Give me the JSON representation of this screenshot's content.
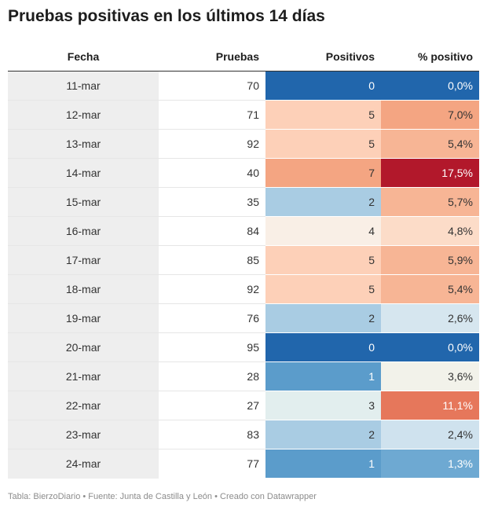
{
  "chart_data": {
    "type": "table",
    "title": "Pruebas positivas en los últimos 14 días",
    "columns": [
      "Fecha",
      "Pruebas",
      "Positivos",
      "% positivo"
    ],
    "rows": [
      {
        "fecha": "11-mar",
        "pruebas": "70",
        "positivos": "0",
        "pct": "0,0%",
        "pos_color": "#2166ac",
        "pct_color": "#2166ac"
      },
      {
        "fecha": "12-mar",
        "pruebas": "71",
        "positivos": "5",
        "pct": "7,0%",
        "pos_color": "#fdd0b8",
        "pct_color": "#f4a582"
      },
      {
        "fecha": "13-mar",
        "pruebas": "92",
        "positivos": "5",
        "pct": "5,4%",
        "pos_color": "#fdd0b8",
        "pct_color": "#f7b595"
      },
      {
        "fecha": "14-mar",
        "pruebas": "40",
        "positivos": "7",
        "pct": "17,5%",
        "pos_color": "#f4a582",
        "pct_color": "#b2182b"
      },
      {
        "fecha": "15-mar",
        "pruebas": "35",
        "positivos": "2",
        "pct": "5,7%",
        "pos_color": "#a9cce3",
        "pct_color": "#f7b595"
      },
      {
        "fecha": "16-mar",
        "pruebas": "84",
        "positivos": "4",
        "pct": "4,8%",
        "pos_color": "#f9efe6",
        "pct_color": "#fcdcc8"
      },
      {
        "fecha": "17-mar",
        "pruebas": "85",
        "positivos": "5",
        "pct": "5,9%",
        "pos_color": "#fdd0b8",
        "pct_color": "#f7b595"
      },
      {
        "fecha": "18-mar",
        "pruebas": "92",
        "positivos": "5",
        "pct": "5,4%",
        "pos_color": "#fdd0b8",
        "pct_color": "#f7b595"
      },
      {
        "fecha": "19-mar",
        "pruebas": "76",
        "positivos": "2",
        "pct": "2,6%",
        "pos_color": "#a9cce3",
        "pct_color": "#d6e6ef"
      },
      {
        "fecha": "20-mar",
        "pruebas": "95",
        "positivos": "0",
        "pct": "0,0%",
        "pos_color": "#2166ac",
        "pct_color": "#2166ac"
      },
      {
        "fecha": "21-mar",
        "pruebas": "28",
        "positivos": "1",
        "pct": "3,6%",
        "pos_color": "#5b9ccb",
        "pct_color": "#f2f2ea"
      },
      {
        "fecha": "22-mar",
        "pruebas": "27",
        "positivos": "3",
        "pct": "11,1%",
        "pos_color": "#e2eeee",
        "pct_color": "#e6775b"
      },
      {
        "fecha": "23-mar",
        "pruebas": "83",
        "positivos": "2",
        "pct": "2,4%",
        "pos_color": "#a9cce3",
        "pct_color": "#cfe2ee"
      },
      {
        "fecha": "24-mar",
        "pruebas": "77",
        "positivos": "1",
        "pct": "1,3%",
        "pos_color": "#5b9ccb",
        "pct_color": "#6ea9d2"
      }
    ],
    "footer": "Tabla: BierzoDiario • Fuente: Junta de Castilla y León • Creado con Datawrapper"
  }
}
